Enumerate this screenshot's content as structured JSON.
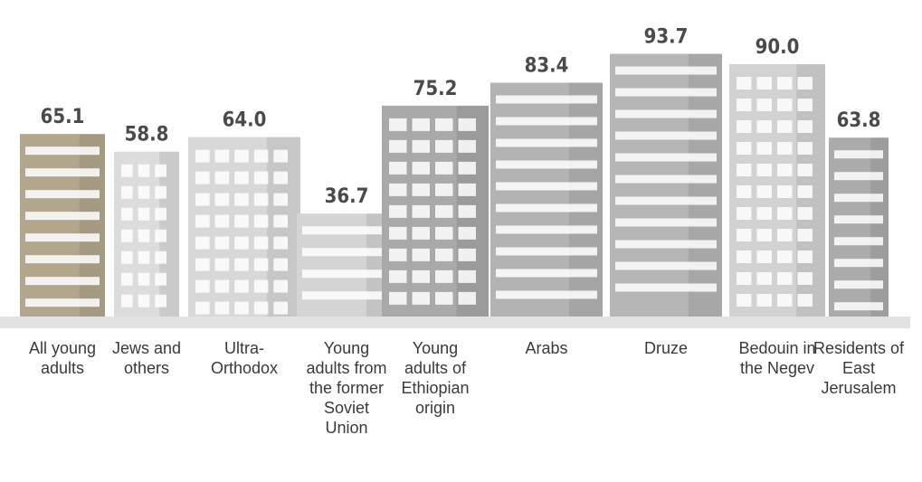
{
  "chart_data": {
    "type": "bar",
    "categories": [
      "All young adults",
      "Jews and others",
      "Ultra-Orthodox",
      "Young adults from the former Soviet Union",
      "Young adults of Ethiopian origin",
      "Arabs",
      "Druze",
      "Bedouin in the Negev",
      "Residents of East Jerusalem"
    ],
    "values": [
      65.1,
      58.8,
      64.0,
      36.7,
      75.2,
      83.4,
      93.7,
      90.0,
      63.8
    ],
    "value_labels": [
      "65.1",
      "58.8",
      "64.0",
      "36.7",
      "75.2",
      "83.4",
      "93.7",
      "90.0",
      "63.8"
    ],
    "colors": [
      "#b2a68c",
      "#dcdcdc",
      "#d8d8d8",
      "#d4d4d4",
      "#a9a9a9",
      "#b3b3b3",
      "#b6b6b6",
      "#d2d2d2",
      "#ababab"
    ]
  }
}
